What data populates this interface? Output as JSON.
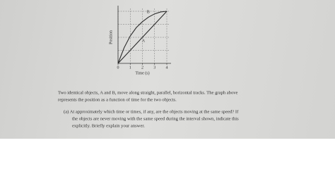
{
  "chart_data": {
    "type": "line",
    "x_label": "Time (s)",
    "y_label": "Position",
    "x": [
      0,
      0.5,
      1,
      1.5,
      2,
      2.5,
      3,
      3.5,
      4
    ],
    "series": [
      {
        "name": "A",
        "color": "#2a2a2a",
        "values": [
          0,
          0.5,
          1,
          1.5,
          2,
          2.5,
          3,
          3.5,
          4
        ]
      },
      {
        "name": "B",
        "color": "#2a2a2a",
        "values": [
          0,
          1.2,
          2.1,
          2.75,
          3.2,
          3.55,
          3.8,
          3.95,
          4
        ]
      }
    ],
    "xlim": [
      0,
      4
    ],
    "xticks": [
      0,
      1,
      2,
      3,
      4
    ],
    "ylim": [
      0,
      4
    ],
    "ygrid": [
      1,
      2,
      3,
      4
    ],
    "grid": true
  },
  "text": {
    "intro": [
      "Two identical objects, A and B, move along straight, parallel, horizontal tracks. The graph above",
      "represents the position as a function of time for the two objects."
    ],
    "question_a": [
      "(a) At approximately which time or times, if any, are the objects moving at the same speed? If",
      "the objects are never moving with the same speed during the interval shown, indicate this",
      "explicitly. Briefly explain your answer."
    ]
  }
}
